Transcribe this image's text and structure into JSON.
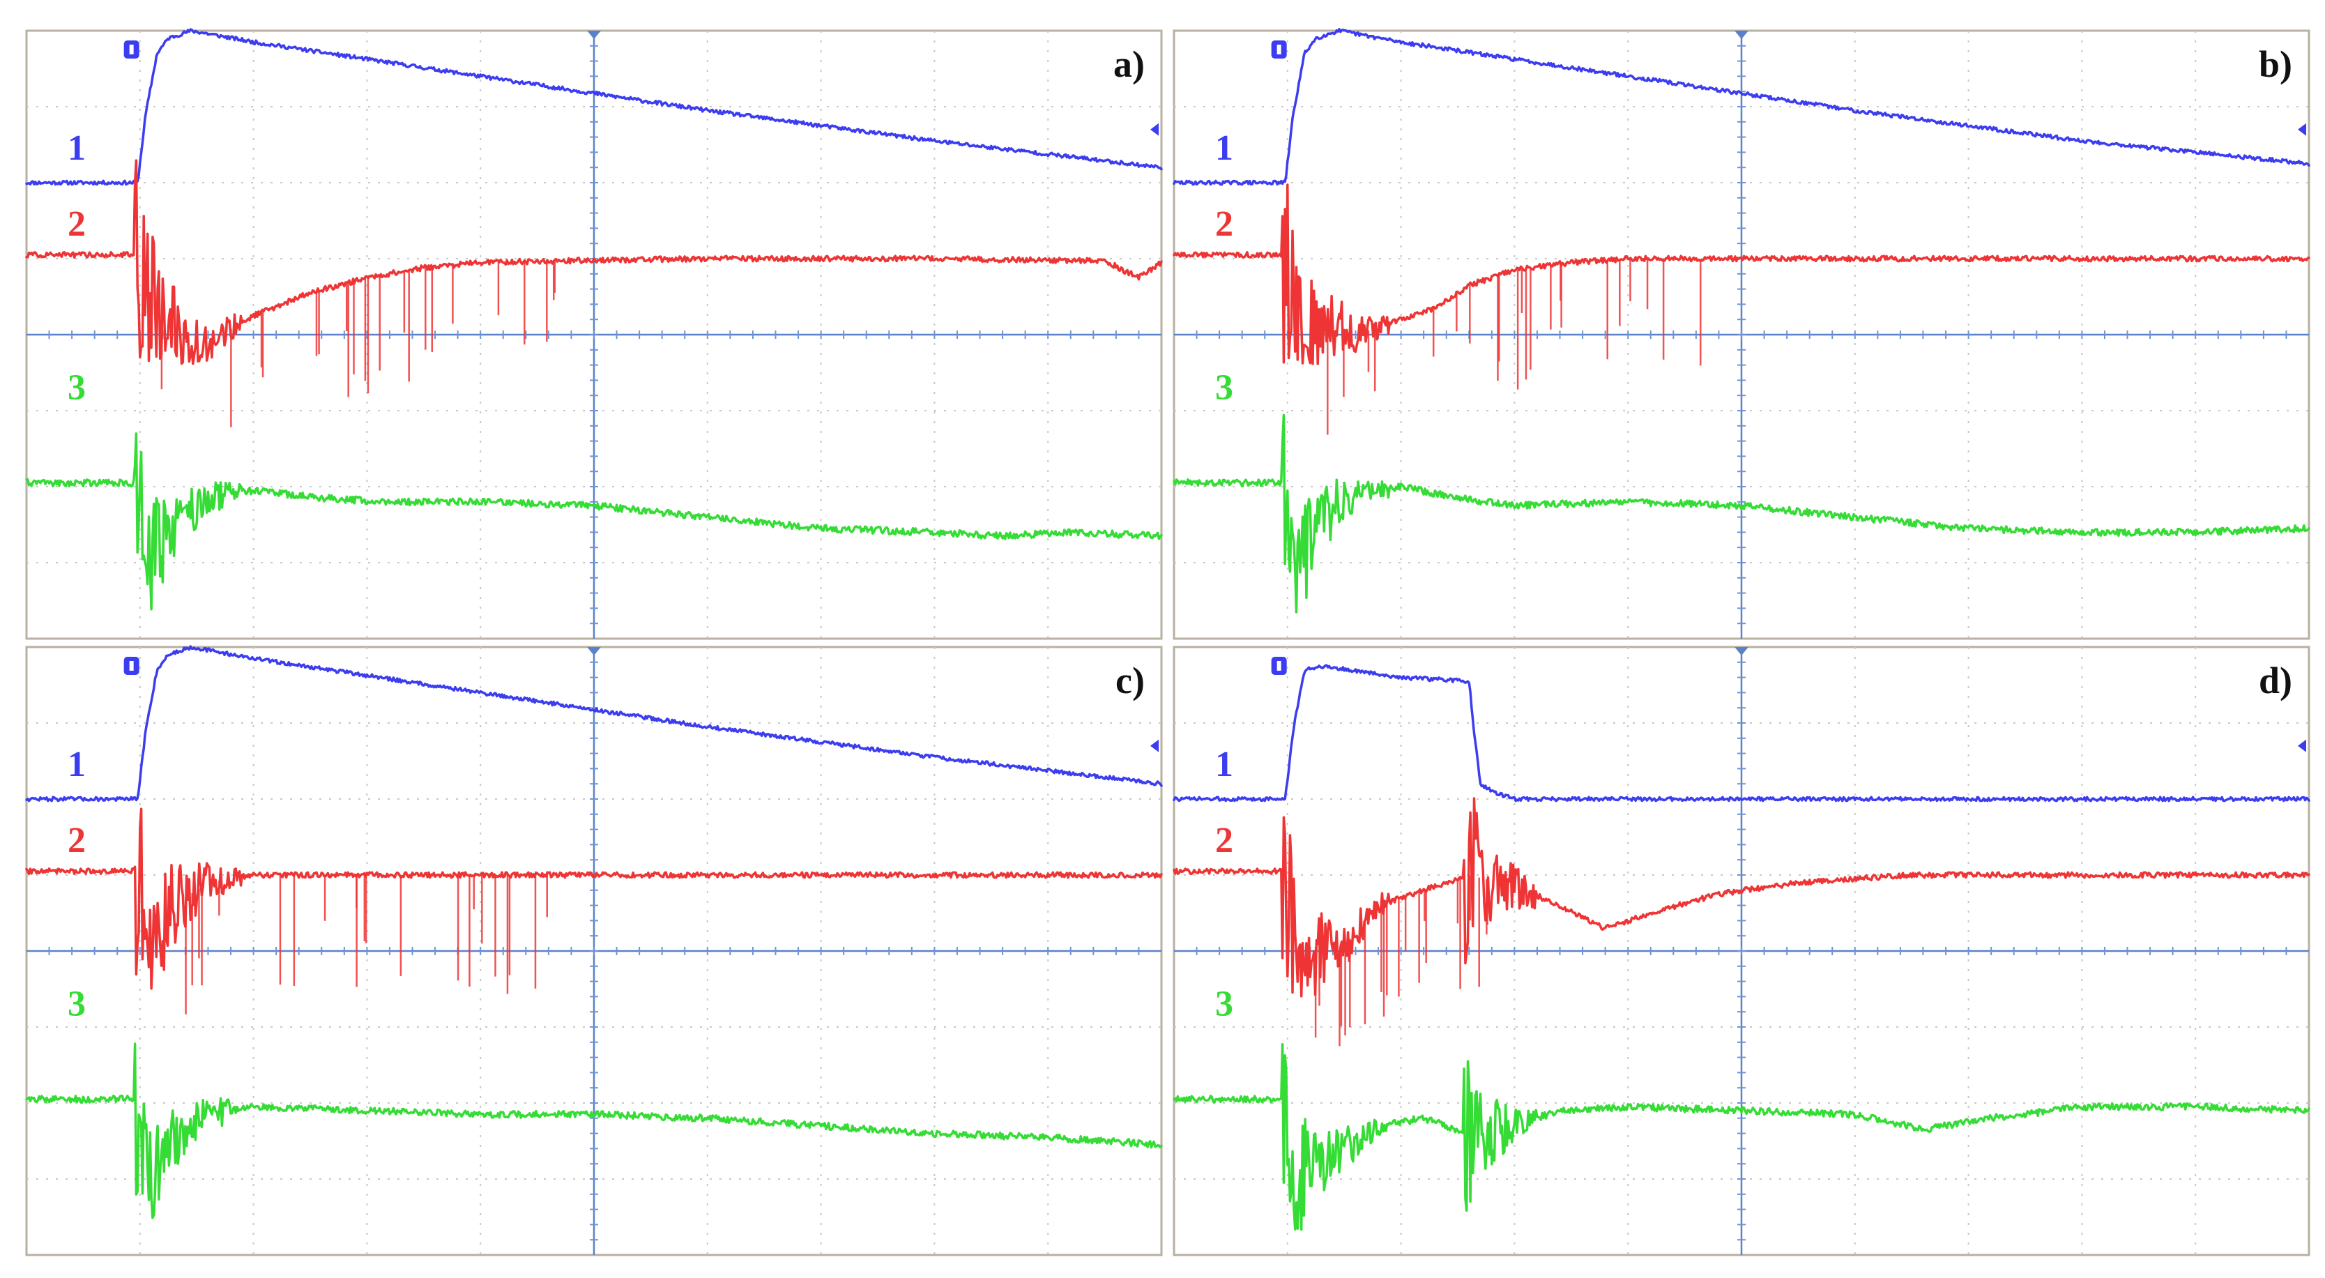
{
  "colors": {
    "channel_1": "#3c3cf0",
    "channel_2": "#ee3434",
    "channel_3": "#36dc36",
    "grid": "#c8c8c8",
    "center_axis": "#5a82c8",
    "frame": "#b8b0a0"
  },
  "chart_data": [
    {
      "type": "line",
      "panel_label": "a)",
      "channel_labels": [
        "1",
        "2",
        "3"
      ],
      "x_range": [
        0,
        10
      ],
      "y_range": [
        0,
        8
      ],
      "grid": true,
      "series": [
        {
          "name": "1",
          "x": [
            0,
            0.98,
            1.05,
            1.15,
            1.25,
            1.45,
            2,
            4,
            6,
            8,
            10
          ],
          "y": [
            6.0,
            6.0,
            6.9,
            7.7,
            7.9,
            8.0,
            7.85,
            7.4,
            6.95,
            6.55,
            6.2
          ]
        },
        {
          "name": "2",
          "x": [
            0,
            0.95,
            1.2,
            1.6,
            2.0,
            2.5,
            3.0,
            3.5,
            4.0,
            5.0,
            6.0,
            7.0,
            8.0,
            9.0,
            9.5,
            9.8,
            10
          ],
          "y": [
            5.05,
            5.05,
            4.1,
            3.9,
            4.25,
            4.55,
            4.75,
            4.88,
            4.95,
            4.98,
            5.0,
            5.0,
            5.0,
            4.98,
            4.97,
            4.75,
            4.95
          ]
        },
        {
          "name": "3",
          "x": [
            0,
            0.95,
            1.1,
            1.3,
            1.6,
            2.0,
            2.6,
            3.2,
            4.0,
            5.0,
            6.0,
            7.0,
            8.0,
            8.6,
            9.2,
            10
          ],
          "y": [
            2.05,
            2.05,
            1.0,
            1.5,
            1.85,
            1.95,
            1.85,
            1.8,
            1.8,
            1.75,
            1.6,
            1.45,
            1.4,
            1.35,
            1.4,
            1.35
          ]
        }
      ]
    },
    {
      "type": "line",
      "panel_label": "b)",
      "channel_labels": [
        "1",
        "2",
        "3"
      ],
      "x_range": [
        0,
        10
      ],
      "y_range": [
        0,
        8
      ],
      "grid": true,
      "series": [
        {
          "name": "1",
          "x": [
            0,
            0.98,
            1.05,
            1.15,
            1.25,
            1.45,
            2,
            4,
            6,
            8,
            10
          ],
          "y": [
            6.0,
            6.0,
            6.9,
            7.7,
            7.9,
            8.0,
            7.85,
            7.4,
            6.95,
            6.55,
            6.25
          ]
        },
        {
          "name": "2",
          "x": [
            0,
            0.95,
            1.2,
            1.6,
            2.0,
            2.3,
            2.6,
            3.0,
            3.5,
            4.0,
            5.0,
            6.0,
            7.0,
            8.0,
            9.0,
            10
          ],
          "y": [
            5.05,
            5.05,
            4.2,
            4.0,
            4.2,
            4.35,
            4.65,
            4.85,
            4.95,
            5.0,
            5.0,
            5.0,
            5.0,
            5.0,
            5.0,
            5.0
          ]
        },
        {
          "name": "3",
          "x": [
            0,
            0.95,
            1.1,
            1.3,
            1.6,
            2.0,
            2.5,
            3.0,
            4.0,
            5.0,
            6.0,
            7.0,
            8.0,
            9.0,
            10
          ],
          "y": [
            2.05,
            2.05,
            1.0,
            1.6,
            1.9,
            2.0,
            1.85,
            1.75,
            1.8,
            1.75,
            1.6,
            1.45,
            1.4,
            1.4,
            1.45
          ]
        }
      ]
    },
    {
      "type": "line",
      "panel_label": "c)",
      "channel_labels": [
        "1",
        "2",
        "3"
      ],
      "x_range": [
        0,
        10
      ],
      "y_range": [
        0,
        8
      ],
      "grid": true,
      "series": [
        {
          "name": "1",
          "x": [
            0,
            0.98,
            1.05,
            1.15,
            1.25,
            1.45,
            2,
            4,
            6,
            8,
            10
          ],
          "y": [
            6.0,
            6.0,
            6.9,
            7.7,
            7.9,
            8.0,
            7.85,
            7.4,
            6.95,
            6.55,
            6.2
          ]
        },
        {
          "name": "2",
          "x": [
            0,
            0.95,
            1.1,
            1.3,
            1.6,
            2.0,
            3.0,
            4.0,
            5.0,
            6.0,
            7.0,
            8.0,
            9.0,
            10
          ],
          "y": [
            5.05,
            5.05,
            4.3,
            4.6,
            4.9,
            5.0,
            5.0,
            5.0,
            5.0,
            5.0,
            5.0,
            5.0,
            5.0,
            5.0
          ]
        },
        {
          "name": "3",
          "x": [
            0,
            0.95,
            1.1,
            1.3,
            1.6,
            2.0,
            3.0,
            4.0,
            5.0,
            6.0,
            7.0,
            8.0,
            9.0,
            10
          ],
          "y": [
            2.05,
            2.05,
            1.0,
            1.6,
            1.85,
            1.95,
            1.9,
            1.85,
            1.85,
            1.8,
            1.7,
            1.6,
            1.55,
            1.45
          ]
        }
      ]
    },
    {
      "type": "line",
      "panel_label": "d)",
      "channel_labels": [
        "1",
        "2",
        "3"
      ],
      "x_range": [
        0,
        10
      ],
      "y_range": [
        0,
        8
      ],
      "grid": true,
      "series": [
        {
          "name": "1",
          "x": [
            0,
            0.98,
            1.05,
            1.15,
            1.3,
            2.0,
            2.6,
            2.65,
            2.7,
            2.8,
            3.0,
            4.0,
            6.0,
            8.0,
            10
          ],
          "y": [
            6.0,
            6.0,
            6.9,
            7.7,
            7.75,
            7.6,
            7.55,
            6.8,
            6.2,
            6.1,
            6.0,
            6.0,
            6.0,
            6.0,
            6.0
          ]
        },
        {
          "name": "2",
          "x": [
            0,
            0.95,
            1.1,
            1.4,
            1.8,
            2.2,
            2.6,
            3.0,
            3.4,
            3.8,
            4.2,
            4.8,
            5.5,
            6.5,
            8.0,
            10
          ],
          "y": [
            5.05,
            5.05,
            4.2,
            3.9,
            4.6,
            4.8,
            5.0,
            4.85,
            4.6,
            4.3,
            4.5,
            4.75,
            4.9,
            5.0,
            5.0,
            5.0
          ]
        },
        {
          "name": "3",
          "x": [
            0,
            0.95,
            1.1,
            1.4,
            1.8,
            2.2,
            2.6,
            3.0,
            3.4,
            4.0,
            5.0,
            6.0,
            6.6,
            7.2,
            8.0,
            9.0,
            10
          ],
          "y": [
            2.05,
            2.05,
            1.0,
            1.3,
            1.7,
            1.8,
            1.6,
            1.7,
            1.9,
            1.95,
            1.9,
            1.85,
            1.65,
            1.8,
            1.95,
            1.95,
            1.9
          ]
        }
      ]
    }
  ]
}
